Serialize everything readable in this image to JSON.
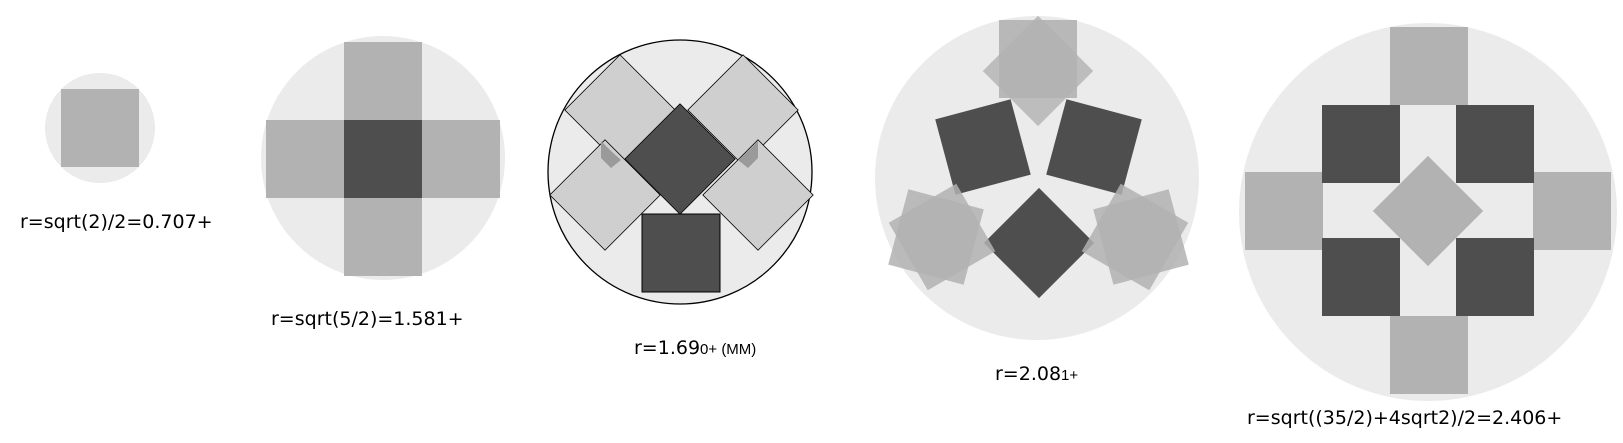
{
  "colors": {
    "disk": "#ebebeb",
    "square_light": "#b2b2b2",
    "square_lighter": "#cfcfcf",
    "square_dark": "#4e4e4e",
    "overlap": "#9a9a9a",
    "outline": "#000000"
  },
  "configurations": [
    {
      "id": "n1",
      "caption": "r=sqrt(2)/2=0.707+"
    },
    {
      "id": "n5",
      "caption": "r=sqrt(5/2)=1.581+"
    },
    {
      "id": "n5-mm",
      "caption_main": "r=1.69",
      "caption_tail": "0+ (MM)"
    },
    {
      "id": "n7",
      "caption_main": "r=2.08",
      "caption_tail": "1+"
    },
    {
      "id": "n9",
      "caption": "r=sqrt((35/2)+4sqrt2)/2=2.406+"
    }
  ]
}
